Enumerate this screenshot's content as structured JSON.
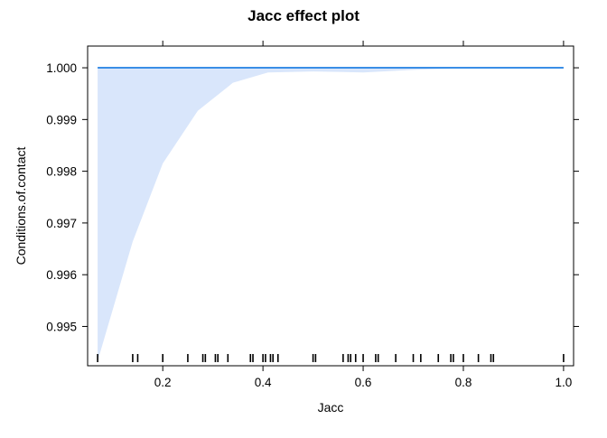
{
  "chart_data": {
    "type": "line",
    "title": "Jacc effect plot",
    "xlabel": "Jacc",
    "ylabel": "Conditions.of.contact",
    "xlim": [
      0.05,
      1.02
    ],
    "ylim": [
      0.99424,
      1.00042
    ],
    "x_ticks": [
      0.2,
      0.4,
      0.6,
      0.8,
      1.0
    ],
    "x_tick_labels": [
      "0.2",
      "0.4",
      "0.6",
      "0.8",
      "1.0"
    ],
    "y_ticks": [
      0.995,
      0.996,
      0.997,
      0.998,
      0.999,
      1.0
    ],
    "y_tick_labels": [
      "0.995",
      "0.996",
      "0.997",
      "0.998",
      "0.999",
      "1.000"
    ],
    "grid": false,
    "colors": {
      "line": "#3a8ee6",
      "band": "#d9e6fb",
      "axis": "#000000"
    },
    "series": [
      {
        "x": [
          0.07,
          1.0
        ],
        "y": [
          1.0,
          1.0
        ]
      }
    ],
    "confidence_band": {
      "x": [
        0.07,
        0.14,
        0.2,
        0.27,
        0.34,
        0.41,
        0.5,
        0.6,
        0.7,
        0.8,
        0.9,
        1.0
      ],
      "lower": [
        0.99433,
        0.99664,
        0.99815,
        0.99917,
        0.99971,
        0.99991,
        0.99993,
        0.99991,
        0.99996,
        0.99999,
        1.0,
        1.0
      ],
      "upper": [
        1.0,
        1.0,
        1.0,
        1.0,
        1.0,
        1.0,
        1.0,
        1.0,
        1.0,
        1.0,
        1.0,
        1.0
      ]
    },
    "rug": [
      0.07,
      0.14,
      0.15,
      0.2,
      0.25,
      0.28,
      0.285,
      0.305,
      0.31,
      0.33,
      0.375,
      0.38,
      0.4,
      0.405,
      0.415,
      0.42,
      0.43,
      0.5,
      0.505,
      0.56,
      0.57,
      0.575,
      0.585,
      0.6,
      0.625,
      0.63,
      0.665,
      0.7,
      0.715,
      0.75,
      0.775,
      0.78,
      0.8,
      0.83,
      0.855,
      0.86,
      1.0
    ]
  }
}
